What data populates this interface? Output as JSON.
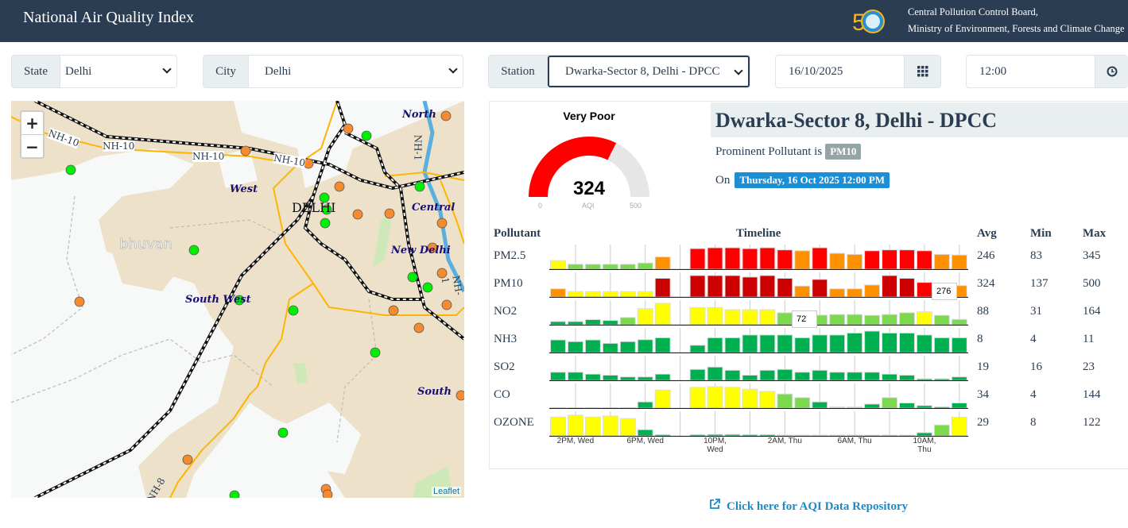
{
  "header": {
    "title": "National Air Quality Index",
    "org_line1": "Central Pollution Control Board,",
    "org_line2": "Ministry of Environment, Forests and Climate Change"
  },
  "filters": {
    "state_label": "State",
    "state_value": "Delhi",
    "city_label": "City",
    "city_value": "Delhi",
    "station_label": "Station",
    "station_value": "Dwarka-Sector 8, Delhi - DPCC",
    "date_value": "16/10/2025",
    "time_value": "12:00"
  },
  "map": {
    "zoom_in": "+",
    "zoom_out": "−",
    "attribution": "Leaflet",
    "watermark": "bhuvan",
    "labels": {
      "north": "North",
      "west": "West",
      "delhi": "DELHI",
      "central": "Central",
      "new_delhi": "New Delhi",
      "south_west": "South West",
      "south": "South",
      "nh10": "NH-10",
      "nh1": "NH-1",
      "nh8": "NH-8"
    }
  },
  "gauge": {
    "category": "Very Poor",
    "value": 324,
    "min": "0",
    "max": "500",
    "unit": "AQI",
    "value_text": "324",
    "color": "#ff0000"
  },
  "station": {
    "title": "Dwarka-Sector 8, Delhi - DPCC",
    "prominent_label": "Prominent Pollutant is",
    "prominent_value": "PM10",
    "on_label": "On",
    "datetime": "Thursday, 16 Oct 2025 12:00 PM"
  },
  "table": {
    "headers": {
      "pollutant": "Pollutant",
      "timeline": "Timeline",
      "avg": "Avg",
      "min": "Min",
      "max": "Max"
    },
    "x_labels": [
      "2PM, Wed",
      "6PM, Wed",
      "10PM, Wed",
      "2AM, Thu",
      "6AM, Thu",
      "10AM, Thu"
    ],
    "colors": {
      "g": "#00b050",
      "lg": "#7ad94c",
      "y": "#ffff00",
      "o": "#ff9000",
      "r": "#ff0000",
      "dr": "#cc0000",
      "p": "#ddd6ee"
    },
    "rows": [
      {
        "name": "PM2.5",
        "avg": "246",
        "min": "83",
        "max": "345",
        "bars": [
          [
            0.4,
            "y"
          ],
          [
            0.23,
            "lg"
          ],
          [
            0.23,
            "lg"
          ],
          [
            0.23,
            "lg"
          ],
          [
            0.23,
            "lg"
          ],
          [
            0.29,
            "lg"
          ],
          [
            0.57,
            "o"
          ],
          null,
          [
            0.96,
            "r"
          ],
          [
            1,
            "r"
          ],
          [
            1,
            "r"
          ],
          [
            0.96,
            "r"
          ],
          [
            1,
            "r"
          ],
          [
            0.9,
            "r"
          ],
          [
            0.86,
            "o"
          ],
          [
            1,
            "r"
          ],
          [
            0.74,
            "o"
          ],
          [
            0.69,
            "o"
          ],
          [
            0.86,
            "r"
          ],
          [
            0.9,
            "r"
          ],
          [
            0.9,
            "r"
          ],
          [
            0.86,
            "r"
          ],
          [
            0.69,
            "o"
          ],
          [
            0.66,
            "o"
          ]
        ]
      },
      {
        "name": "PM10",
        "avg": "324",
        "min": "137",
        "max": "500",
        "bars": [
          [
            0.38,
            "o"
          ],
          [
            0.25,
            "y"
          ],
          [
            0.25,
            "y"
          ],
          [
            0.25,
            "y"
          ],
          [
            0.25,
            "y"
          ],
          [
            0.25,
            "y"
          ],
          [
            0.87,
            "dr"
          ],
          null,
          [
            1,
            "dr"
          ],
          [
            1,
            "dr"
          ],
          [
            1,
            "dr"
          ],
          [
            0.93,
            "dr"
          ],
          [
            1,
            "dr"
          ],
          [
            0.87,
            "dr"
          ],
          [
            0.51,
            "o"
          ],
          [
            0.82,
            "dr"
          ],
          [
            0.38,
            "o"
          ],
          [
            0.38,
            "o"
          ],
          [
            0.56,
            "o"
          ],
          [
            1,
            "dr"
          ],
          [
            0.87,
            "dr"
          ],
          [
            0.68,
            "r"
          ],
          [
            0.62,
            "r"
          ],
          [
            0.53,
            "o"
          ]
        ]
      },
      {
        "name": "NO2",
        "avg": "88",
        "min": "31",
        "max": "164",
        "bars": [
          [
            0.15,
            "g"
          ],
          [
            0.15,
            "g"
          ],
          [
            0.24,
            "g"
          ],
          [
            0.2,
            "g"
          ],
          [
            0.34,
            "lg"
          ],
          [
            0.75,
            "y"
          ],
          [
            1,
            "y"
          ],
          null,
          [
            0.8,
            "y"
          ],
          [
            0.8,
            "y"
          ],
          [
            0.7,
            "y"
          ],
          [
            0.7,
            "y"
          ],
          [
            0.7,
            "y"
          ],
          [
            0.56,
            "lg"
          ],
          [
            0.5,
            "lg"
          ],
          [
            0.45,
            "lg"
          ],
          [
            0.48,
            "lg"
          ],
          [
            0.48,
            "lg"
          ],
          [
            0.44,
            "lg"
          ],
          [
            0.48,
            "lg"
          ],
          [
            0.56,
            "lg"
          ],
          [
            0.6,
            "y"
          ],
          [
            0.44,
            "lg"
          ],
          [
            0.25,
            "lg"
          ]
        ]
      },
      {
        "name": "NH3",
        "avg": "8",
        "min": "4",
        "max": "11",
        "bars": [
          [
            0.59,
            "g"
          ],
          [
            0.51,
            "g"
          ],
          [
            0.59,
            "g"
          ],
          [
            0.43,
            "g"
          ],
          [
            0.51,
            "g"
          ],
          [
            0.6,
            "g"
          ],
          [
            0.69,
            "g"
          ],
          null,
          [
            0.34,
            "g"
          ],
          [
            0.69,
            "g"
          ],
          [
            0.69,
            "g"
          ],
          [
            0.82,
            "g"
          ],
          [
            0.82,
            "g"
          ],
          [
            0.82,
            "g"
          ],
          [
            0.69,
            "g"
          ],
          [
            0.82,
            "g"
          ],
          [
            0.82,
            "g"
          ],
          [
            0.91,
            "g"
          ],
          [
            1,
            "g"
          ],
          [
            0.91,
            "g"
          ],
          [
            0.91,
            "g"
          ],
          [
            0.82,
            "g"
          ],
          [
            0.69,
            "g"
          ],
          [
            0.69,
            "g"
          ]
        ]
      },
      {
        "name": "SO2",
        "avg": "19",
        "min": "16",
        "max": "23",
        "bars": [
          [
            0.38,
            "g"
          ],
          [
            0.38,
            "g"
          ],
          [
            0.29,
            "g"
          ],
          [
            0.24,
            "g"
          ],
          [
            0.16,
            "g"
          ],
          [
            0.16,
            "g"
          ],
          [
            0.29,
            "g"
          ],
          null,
          [
            0.51,
            "g"
          ],
          [
            0.62,
            "g"
          ],
          [
            0.47,
            "g"
          ],
          [
            0.24,
            "g"
          ],
          [
            0.47,
            "g"
          ],
          [
            0.51,
            "g"
          ],
          [
            0.38,
            "g"
          ],
          [
            0.47,
            "g"
          ],
          [
            0.38,
            "g"
          ],
          [
            0.38,
            "g"
          ],
          [
            0.38,
            "g"
          ],
          [
            0.29,
            "g"
          ],
          [
            0.24,
            "g"
          ],
          [
            0.07,
            "g"
          ],
          [
            0.07,
            "g"
          ],
          [
            0.16,
            "g"
          ]
        ]
      },
      {
        "name": "CO",
        "avg": "34",
        "min": "4",
        "max": "144",
        "bars": [
          [
            0,
            "g"
          ],
          [
            0,
            "g"
          ],
          [
            0,
            "g"
          ],
          [
            0,
            "g"
          ],
          [
            0.02,
            "g"
          ],
          [
            0.29,
            "g"
          ],
          [
            0.84,
            "y"
          ],
          null,
          [
            0.97,
            "y"
          ],
          [
            1,
            "y"
          ],
          [
            0.97,
            "y"
          ],
          [
            0.88,
            "y"
          ],
          [
            0.78,
            "y"
          ],
          [
            0.66,
            "lg"
          ],
          [
            0.49,
            "lg"
          ],
          [
            0.29,
            "g"
          ],
          [
            0.06,
            "p"
          ],
          [
            0.06,
            "p"
          ],
          [
            0.19,
            "g"
          ],
          [
            0.49,
            "lg"
          ],
          [
            0.24,
            "g"
          ],
          [
            0.12,
            "g"
          ],
          [
            0.06,
            "g"
          ],
          [
            0.24,
            "g"
          ]
        ]
      },
      {
        "name": "OZONE",
        "avg": "29",
        "min": "8",
        "max": "122",
        "bars": [
          [
            0.88,
            "y"
          ],
          [
            0.97,
            "y"
          ],
          [
            0.88,
            "y"
          ],
          [
            0.93,
            "y"
          ],
          [
            0.81,
            "y"
          ],
          [
            0.29,
            "g"
          ],
          [
            0.06,
            "g"
          ],
          null,
          [
            0.06,
            "g"
          ],
          [
            0.07,
            "g"
          ],
          [
            0.07,
            "g"
          ],
          [
            0.06,
            "g"
          ],
          [
            0.06,
            "g"
          ],
          [
            0.04,
            "p"
          ],
          [
            0.04,
            "p"
          ],
          [
            0.04,
            "p"
          ],
          [
            0.04,
            "p"
          ],
          [
            0.04,
            "p"
          ],
          [
            0.04,
            "g"
          ],
          [
            0.04,
            "g"
          ],
          [
            0.04,
            "g"
          ],
          [
            0.15,
            "g"
          ],
          [
            0.51,
            "lg"
          ],
          [
            0.87,
            "y"
          ]
        ]
      }
    ],
    "tooltips": {
      "pm10": "276",
      "no2": "72"
    }
  },
  "link": {
    "label": "Click here for AQI Data Repository"
  }
}
